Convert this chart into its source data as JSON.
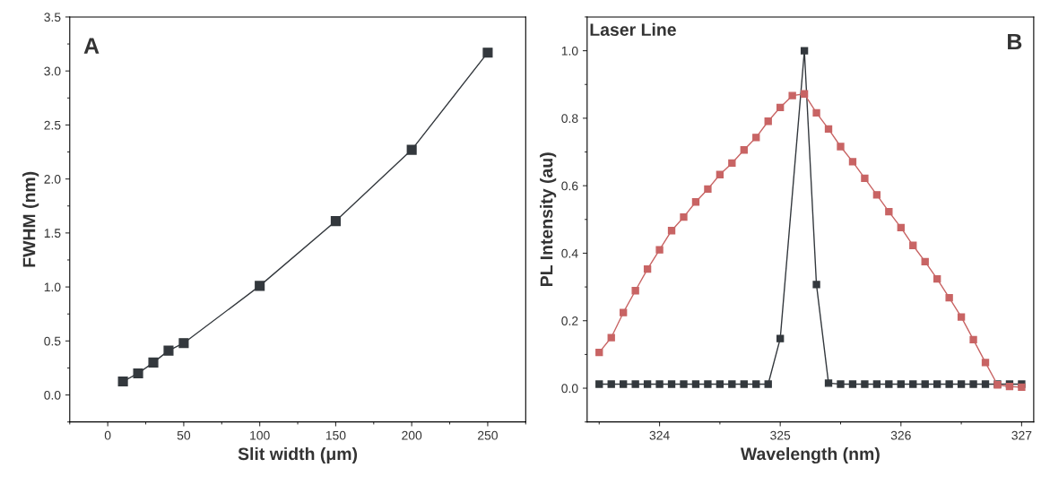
{
  "chart_data": [
    {
      "type": "line",
      "xlabel": "Slit width (μm)",
      "ylabel": "FWHM (nm)",
      "annotations": [
        "A"
      ],
      "x": [
        10,
        20,
        30,
        40,
        50,
        100,
        150,
        200,
        250
      ],
      "series": [
        {
          "color": "#33383d",
          "values": [
            0.125,
            0.2,
            0.3,
            0.41,
            0.48,
            1.01,
            1.61,
            2.27,
            3.17
          ]
        }
      ],
      "xlim": [
        -25,
        275
      ],
      "xticks": [
        0,
        50,
        100,
        150,
        200,
        250
      ],
      "ylim": [
        -0.25,
        3.5
      ],
      "yticks": [
        {
          "value": 0,
          "label": "0.0"
        },
        {
          "value": 0.5,
          "label": "0.5"
        },
        {
          "value": 1,
          "label": "1.0"
        },
        {
          "value": 1.5,
          "label": "1.5"
        },
        {
          "value": 2,
          "label": "2.0"
        },
        {
          "value": 2.5,
          "label": "2.5"
        },
        {
          "value": 3,
          "label": "3.0"
        },
        {
          "value": 3.5,
          "label": "3.5"
        }
      ],
      "marker": "square",
      "line_style": "solid",
      "grid": false,
      "legend": false
    },
    {
      "type": "line",
      "xlabel": "Wavelength (nm)",
      "ylabel": "PL Intensity (au)",
      "annotations": [
        "Laser Line",
        "B"
      ],
      "series": [
        {
          "color": "#c86464",
          "x": [
            323.5,
            323.6,
            323.7,
            323.8,
            323.9,
            324.0,
            324.1,
            324.2,
            324.3,
            324.4,
            324.5,
            324.6,
            324.7,
            324.8,
            324.9,
            325.0,
            325.1,
            325.2,
            325.3,
            325.4,
            325.5,
            325.6,
            325.7,
            325.8,
            325.9,
            326.0,
            326.1,
            326.2,
            326.3,
            326.4,
            326.5,
            326.6,
            326.7,
            326.8,
            326.9,
            327.0
          ],
          "values": [
            0.106,
            0.15,
            0.224,
            0.289,
            0.353,
            0.41,
            0.467,
            0.507,
            0.552,
            0.59,
            0.633,
            0.667,
            0.706,
            0.743,
            0.791,
            0.832,
            0.867,
            0.872,
            0.816,
            0.768,
            0.716,
            0.671,
            0.622,
            0.573,
            0.523,
            0.476,
            0.423,
            0.375,
            0.324,
            0.268,
            0.211,
            0.144,
            0.076,
            0.01,
            0.005,
            0.003
          ]
        },
        {
          "color": "#33383d",
          "x": [
            323.5,
            323.6,
            323.7,
            323.8,
            323.9,
            324.0,
            324.1,
            324.2,
            324.3,
            324.4,
            324.5,
            324.6,
            324.7,
            324.8,
            324.9,
            325.0,
            325.2,
            325.3,
            325.4,
            325.5,
            325.6,
            325.7,
            325.8,
            325.9,
            326.0,
            326.1,
            326.2,
            326.3,
            326.4,
            326.5,
            326.6,
            326.7,
            326.8,
            326.9,
            327.0
          ],
          "values": [
            0.012,
            0.012,
            0.012,
            0.012,
            0.012,
            0.012,
            0.012,
            0.012,
            0.012,
            0.012,
            0.012,
            0.012,
            0.012,
            0.012,
            0.012,
            0.147,
            1.0,
            0.307,
            0.015,
            0.012,
            0.012,
            0.012,
            0.012,
            0.012,
            0.012,
            0.012,
            0.012,
            0.012,
            0.012,
            0.012,
            0.012,
            0.012,
            0.012,
            0.012,
            0.012
          ]
        }
      ],
      "xlim": [
        323.4,
        327.1
      ],
      "xticks": [
        324,
        325,
        326,
        327
      ],
      "ylim": [
        -0.1,
        1.1
      ],
      "yticks": [
        {
          "value": 0,
          "label": "0.0"
        },
        {
          "value": 0.2,
          "label": "0.2"
        },
        {
          "value": 0.4,
          "label": "0.4"
        },
        {
          "value": 0.6,
          "label": "0.6"
        },
        {
          "value": 0.8,
          "label": "0.8"
        },
        {
          "value": 1,
          "label": "1.0"
        }
      ],
      "marker": "square",
      "line_style": "solid",
      "grid": false,
      "legend": false
    }
  ]
}
